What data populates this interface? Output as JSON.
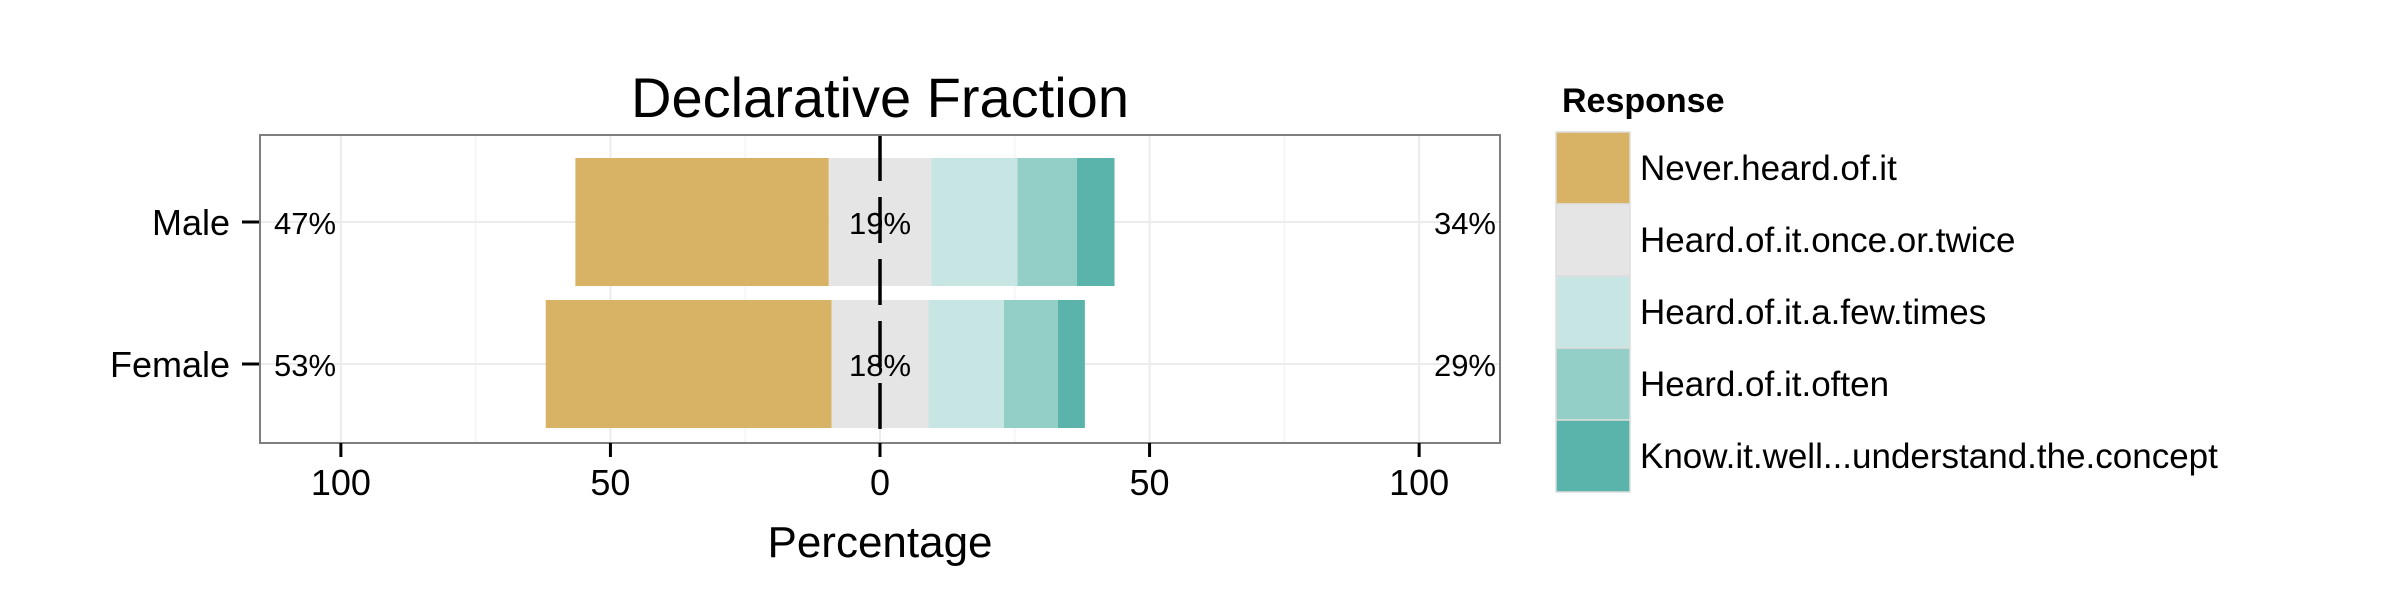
{
  "chart_data": {
    "type": "bar",
    "orientation": "horizontal",
    "stacking": "diverging",
    "title": "Declarative Fraction",
    "xlabel": "Percentage",
    "ylabel": "",
    "xlim": [
      -115,
      115
    ],
    "x_ticks": [
      -100,
      -50,
      0,
      50,
      100
    ],
    "x_tick_labels": [
      "100",
      "50",
      "0",
      "50",
      "100"
    ],
    "grid": true,
    "legend_position": "right",
    "legend_title": "Response",
    "categories": [
      "Male",
      "Female"
    ],
    "series": [
      {
        "name": "Never.heard.of.it",
        "color": "#D8B365",
        "values": [
          47,
          53
        ]
      },
      {
        "name": "Heard.of.it.once.or.twice",
        "color": "#E5E5E5",
        "values": [
          19,
          18
        ]
      },
      {
        "name": "Heard.of.it.a.few.times",
        "color": "#C7E5E3",
        "values": [
          16,
          14
        ]
      },
      {
        "name": "Heard.of.it.often",
        "color": "#94CFC7",
        "values": [
          11,
          10
        ]
      },
      {
        "name": "Know.it.well...understand.the.concept",
        "color": "#5AB4AC",
        "values": [
          7,
          5
        ]
      }
    ],
    "annotations": {
      "left_percent": [
        "47%",
        "53%"
      ],
      "neutral_percent": [
        "19%",
        "18%"
      ],
      "right_percent": [
        "34%",
        "29%"
      ]
    }
  }
}
